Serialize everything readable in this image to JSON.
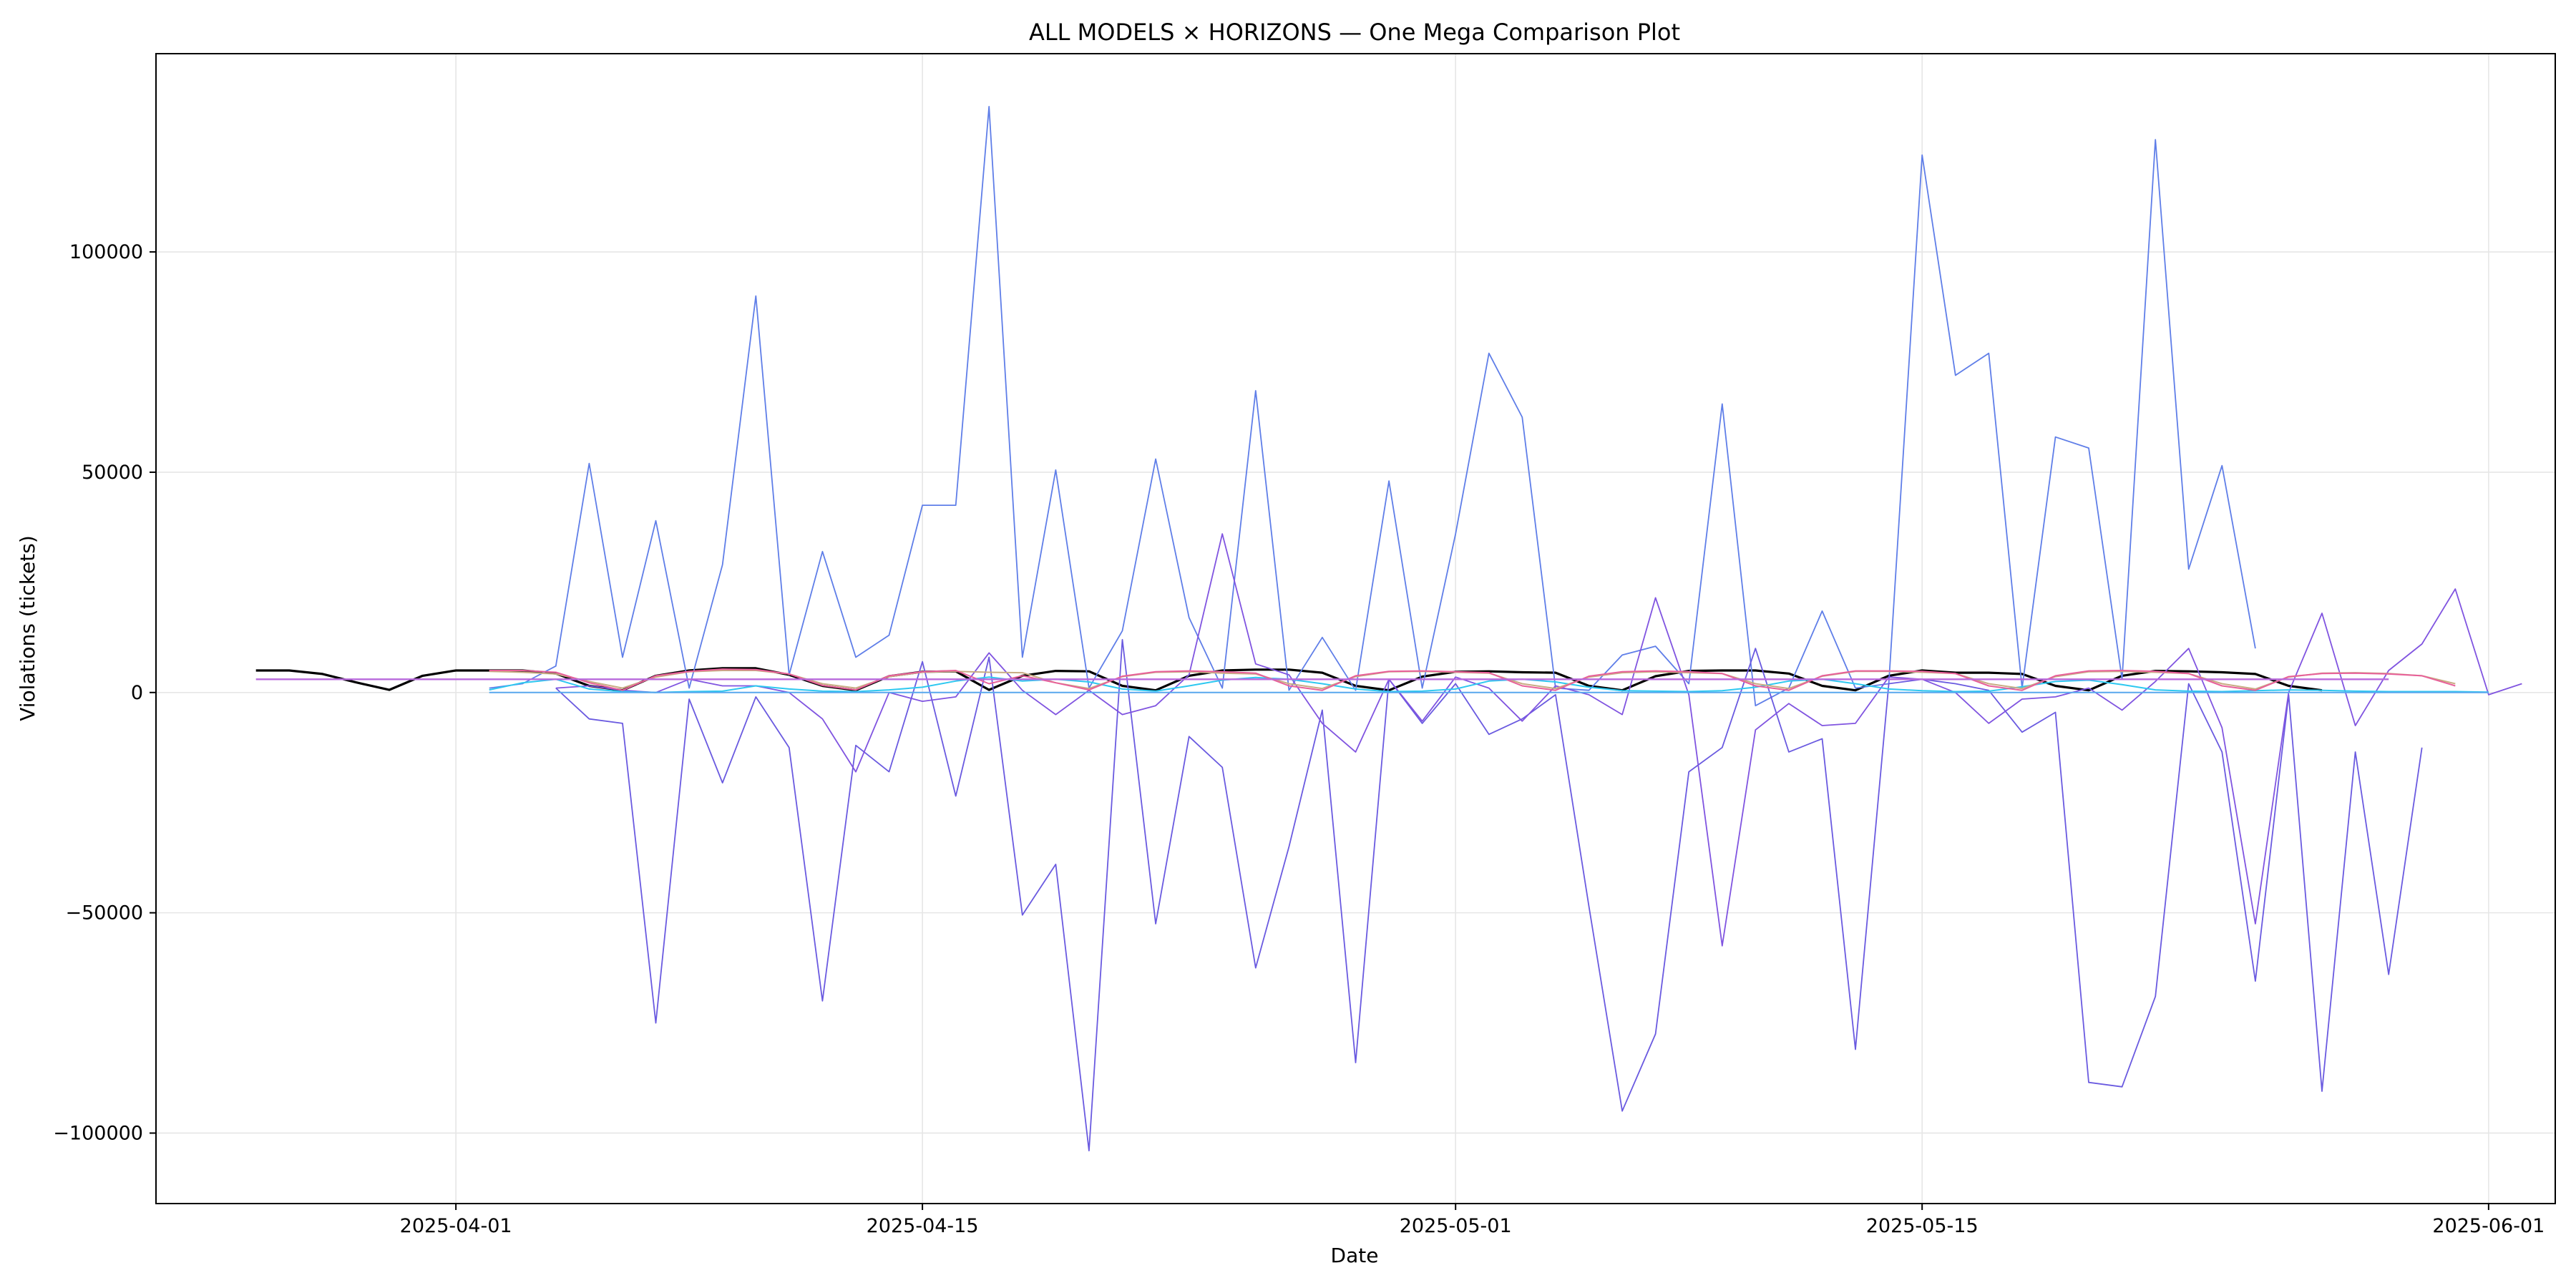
{
  "chart_data": {
    "type": "line",
    "title": "ALL MODELS × HORIZONS — One Mega Comparison Plot",
    "xlabel": "Date",
    "ylabel": "Violations (tickets)",
    "x_range": [
      "2025-03-23",
      "2025-06-03"
    ],
    "ylim": [
      -116000,
      145000
    ],
    "grid": true,
    "x_ticks": [
      "2025-04-01",
      "2025-04-15",
      "2025-05-01",
      "2025-05-15",
      "2025-06-01"
    ],
    "y_ticks": [
      -100000,
      -50000,
      0,
      50000,
      100000
    ],
    "y_tick_labels": [
      "−100000",
      "−50000",
      "0",
      "50000",
      "100000"
    ],
    "series": [
      {
        "color": "#000000",
        "width": 3.2,
        "x0": "2025-03-26",
        "values": [
          5000,
          5000,
          4200,
          2300,
          600,
          3800,
          5000,
          5000,
          5000,
          4300,
          1500,
          500,
          3800,
          5000,
          5500,
          5500,
          4000,
          1500,
          500,
          3700,
          4700,
          4800,
          600,
          3800,
          4900,
          4800,
          1500,
          500,
          3800,
          5000,
          5200,
          5200,
          4500,
          1500,
          500,
          3600,
          4700,
          4800,
          4600,
          4500,
          1500,
          500,
          3700,
          4900,
          5000,
          5000,
          4300,
          1500,
          500,
          3800,
          5000,
          4500,
          4500,
          4200,
          1500,
          500,
          3800,
          4900,
          4800,
          4600,
          4200,
          1500,
          500
        ]
      },
      {
        "color": "#5f7ee8",
        "width": 1.8,
        "x0": "2025-04-02",
        "values": [
          1000,
          2000,
          6000,
          52000,
          8000,
          39000,
          1000,
          29000,
          90000,
          4000,
          32000,
          8000,
          13000,
          42500,
          42500,
          133000,
          8000,
          50500,
          1000,
          14000,
          53000,
          17000,
          1000,
          68500,
          500,
          12500,
          500,
          48000,
          1000,
          36000,
          77000,
          62500,
          1000,
          500,
          8500,
          10500,
          2000,
          65500,
          -3000,
          1000,
          18500,
          1000,
          2000,
          122000,
          72000,
          77000,
          1000,
          58000,
          55500,
          3000,
          125500,
          28000,
          51500,
          10000
        ]
      },
      {
        "color": "#6a5ae0",
        "width": 1.8,
        "x0": "2025-04-04",
        "values": [
          1000,
          -6000,
          -7000,
          -75000,
          -1500,
          -20500,
          -1000,
          -12500,
          -70000,
          -12000,
          -18000,
          7000,
          -23500,
          8000,
          -50500,
          -39000,
          -104000,
          12000,
          -52500,
          -10000,
          -17000,
          -62500,
          -35000,
          -4000,
          -84000,
          3000,
          -7000,
          2000,
          -9500,
          -6000,
          -500,
          -48500,
          -95000,
          -77500,
          -18000,
          -12500,
          10000,
          -13500,
          -10500,
          -81000,
          2000,
          3000,
          2000,
          500,
          -9000,
          -4500,
          -88500,
          -89500,
          -69000,
          2000,
          -13500,
          -65500,
          -500,
          -90500,
          -13500,
          -64000,
          -12500
        ]
      },
      {
        "color": "#8054e0",
        "width": 1.8,
        "x0": "2025-04-04",
        "values": [
          1000,
          1500,
          500,
          0,
          3000,
          1500,
          1500,
          0,
          -6000,
          -18000,
          0,
          -2000,
          -1000,
          9000,
          500,
          -5000,
          500,
          -5000,
          -3000,
          4000,
          36000,
          6500,
          4000,
          -7000,
          -13500,
          3000,
          -6500,
          3500,
          1000,
          -6500,
          1500,
          -500,
          -5000,
          21500,
          -500,
          -57500,
          -8500,
          -2500,
          -7500,
          -7000,
          3500,
          3000,
          0,
          -7000,
          -1500,
          -1000,
          1000,
          -4000,
          2500,
          10000,
          -8000,
          -52500,
          0,
          18000,
          -7500,
          5000,
          11000,
          23500,
          -500,
          2000
        ]
      },
      {
        "color": "#2ec8f0",
        "width": 2.0,
        "x0": "2025-04-02",
        "values": [
          600,
          2200,
          3000,
          800,
          200,
          0,
          200,
          300,
          1500,
          800,
          300,
          200,
          600,
          1200,
          2600,
          3500,
          2600,
          3000,
          2400,
          800,
          300,
          1500,
          2800,
          3400,
          3000,
          2000,
          800,
          200,
          300,
          800,
          2600,
          3000,
          2400,
          1200,
          400,
          300,
          200,
          400,
          1200,
          2600,
          3000,
          2000,
          800,
          400,
          200,
          300,
          1300,
          2500,
          2800,
          1800,
          600,
          300,
          200,
          400,
          600,
          500,
          300,
          200,
          200,
          200,
          100
        ]
      },
      {
        "color": "#c8ac84",
        "width": 2.0,
        "x0": "2025-04-02",
        "values": [
          4800,
          4600,
          4200,
          2500,
          1000,
          3500,
          4700,
          5000,
          5000,
          4200,
          2000,
          1000,
          3600,
          4600,
          4800,
          4600,
          4500,
          2200,
          900,
          3600,
          4600,
          4700,
          4400,
          4200,
          2000,
          900,
          3600,
          4700,
          4800,
          4600,
          4400,
          2000,
          900,
          3500,
          4500,
          4700,
          4500,
          4300,
          2000,
          900,
          3700,
          4800,
          4800,
          4600,
          4300,
          2000,
          900,
          3600,
          4700,
          4800,
          4600,
          4300,
          2000,
          800,
          3500,
          4400,
          4500,
          4300,
          3800,
          2000
        ]
      },
      {
        "color": "#e8609a",
        "width": 2.0,
        "x0": "2025-04-02",
        "values": [
          5000,
          5000,
          4600,
          2200,
          500,
          3800,
          4800,
          5300,
          5200,
          4200,
          1600,
          600,
          3800,
          4700,
          5000,
          2000,
          3800,
          2200,
          600,
          3700,
          4700,
          4900,
          4700,
          4400,
          1500,
          500,
          3800,
          4800,
          4900,
          4700,
          4500,
          1500,
          500,
          3700,
          4700,
          4900,
          4700,
          4300,
          1500,
          500,
          3800,
          4900,
          4900,
          4800,
          4300,
          1500,
          500,
          3800,
          4900,
          5000,
          4800,
          4300,
          1500,
          500,
          3600,
          4300,
          4400,
          4200,
          3800,
          1500
        ]
      },
      {
        "color": "#b86adc",
        "width": 2.4,
        "x0": "2025-03-26",
        "values": [
          3000,
          3000,
          3000,
          3000,
          3000,
          3000,
          3000,
          3000,
          3000,
          3000,
          3000,
          3000,
          3000,
          3000,
          3000,
          3000,
          3000,
          3000,
          3000,
          3000,
          3000,
          3000,
          3000,
          3000,
          3000,
          3000,
          3000,
          3000,
          3000,
          3000,
          3000,
          3000,
          3000,
          3000,
          3000,
          3000,
          3000,
          3000,
          3000,
          3000,
          3000,
          3000,
          3000,
          3000,
          3000,
          3000,
          3000,
          3000,
          3000,
          3000,
          3000,
          3000,
          3000,
          3000,
          3000,
          3000,
          3000,
          3000,
          3000,
          3000,
          3000,
          3000,
          3000,
          3000,
          3000
        ]
      },
      {
        "color": "#58a8ee",
        "width": 2.0,
        "x0": "2025-04-02",
        "values": [
          0,
          0,
          0,
          0,
          0,
          0,
          0,
          0,
          0,
          0,
          0,
          0,
          0,
          0,
          0,
          0,
          0,
          0,
          0,
          0,
          0,
          0,
          0,
          0,
          0,
          0,
          0,
          0,
          0,
          0,
          0,
          0,
          0,
          0,
          0,
          0,
          0,
          0,
          0,
          0,
          0,
          0,
          0,
          0,
          0,
          0,
          0,
          0,
          0,
          0,
          0,
          0,
          0,
          0,
          0,
          0,
          0,
          0,
          0,
          0,
          0
        ]
      }
    ]
  }
}
